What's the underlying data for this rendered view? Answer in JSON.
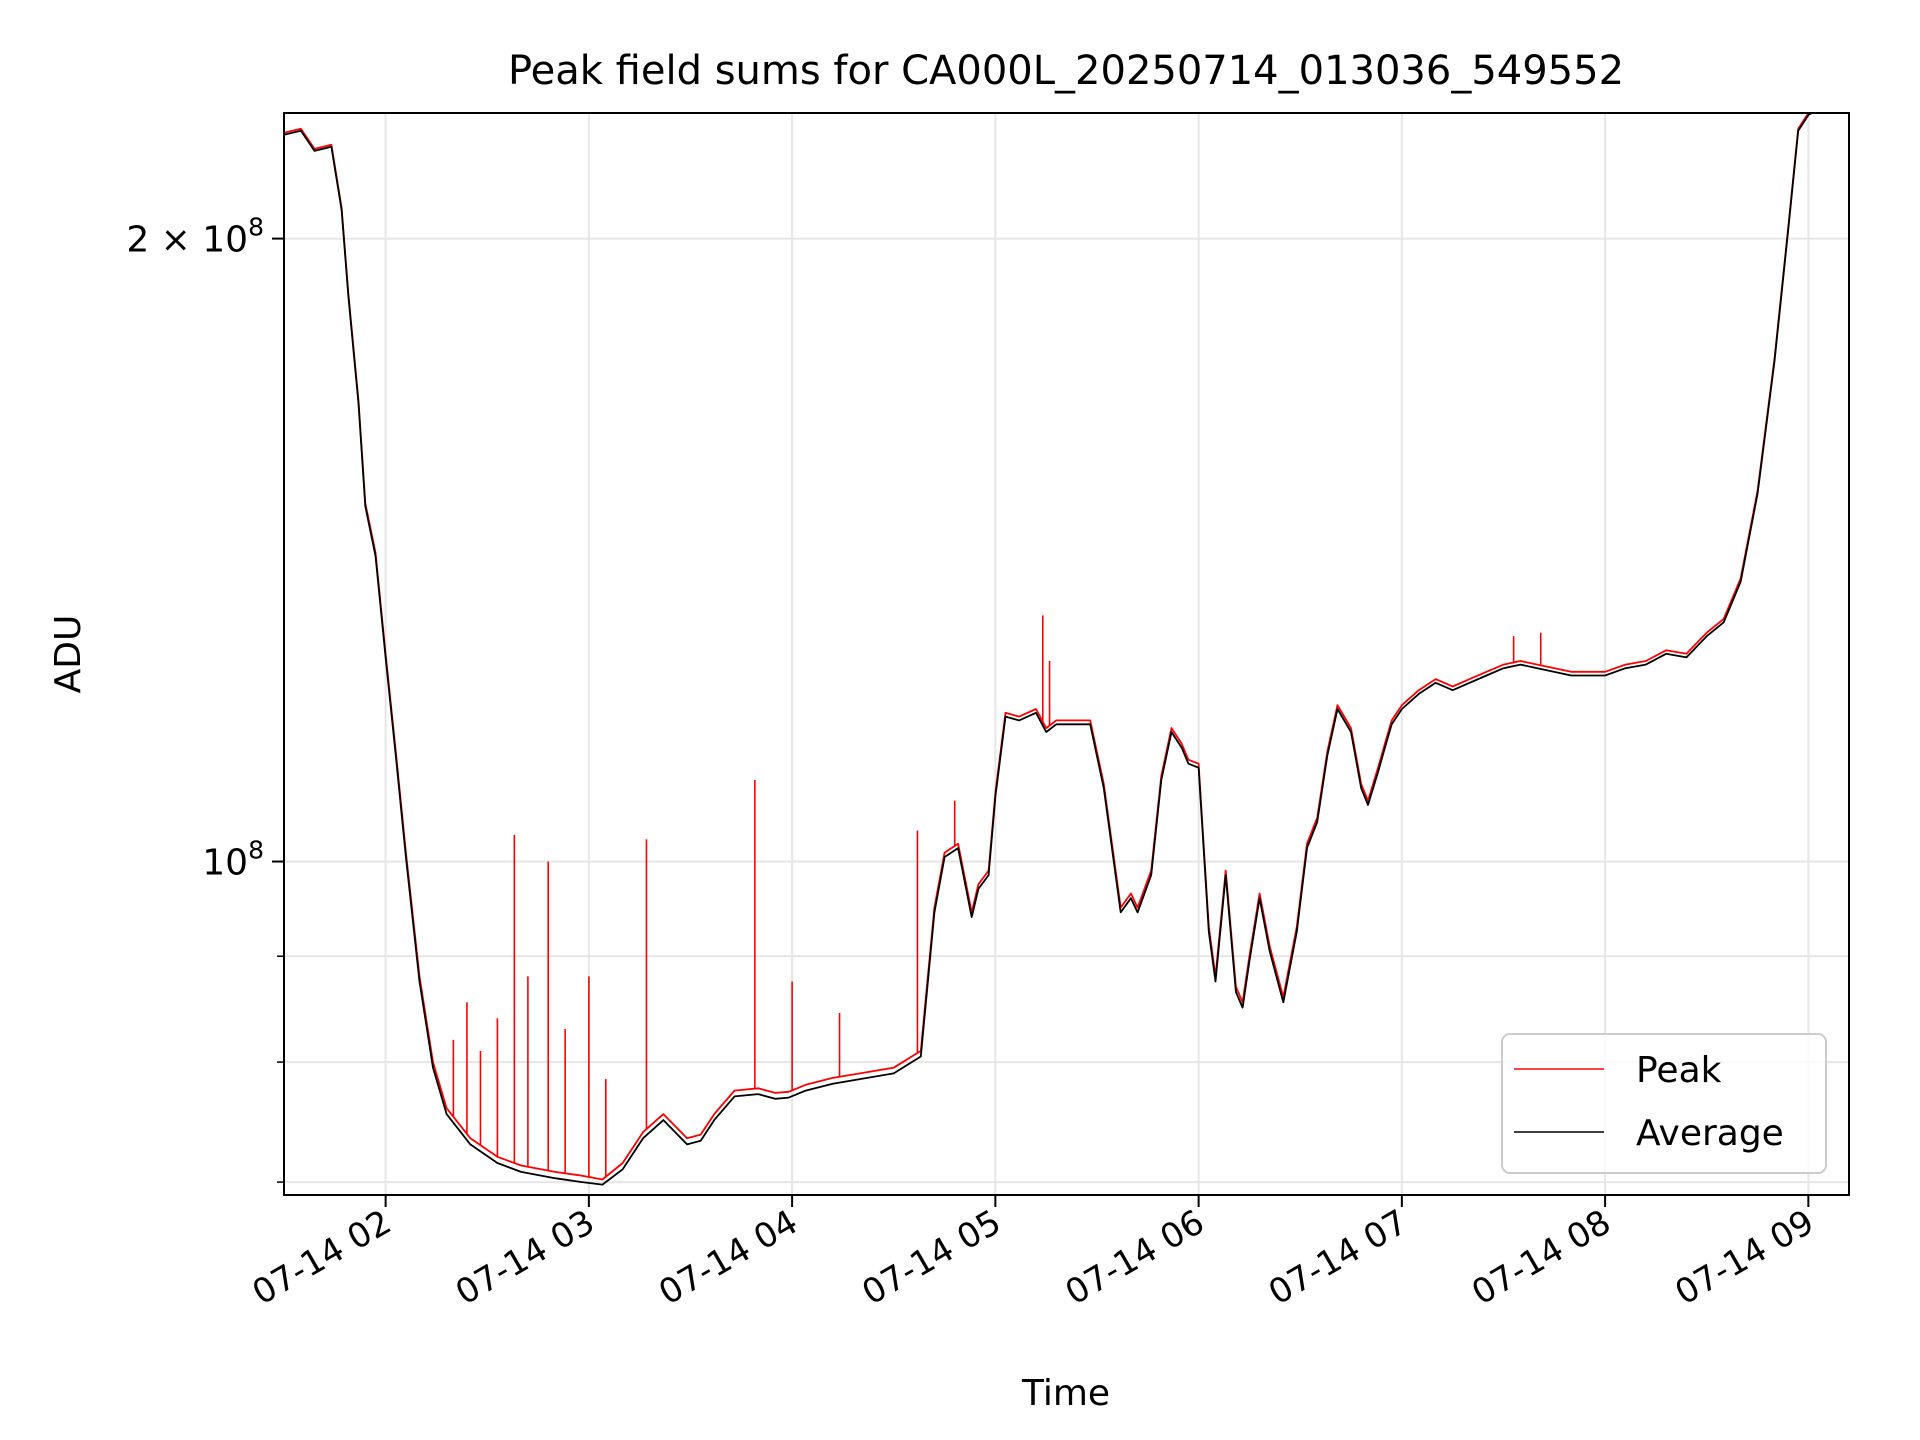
{
  "chart_data": {
    "type": "line",
    "title": "Peak field sums for CA000L_20250714_013036_549552",
    "xlabel": "Time",
    "ylabel": "ADU",
    "yscale": "log",
    "grid": true,
    "legend_position": "lower-right",
    "x_tick_labels": [
      "07-14 02",
      "07-14 03",
      "07-14 04",
      "07-14 05",
      "07-14 06",
      "07-14 07",
      "07-14 08",
      "07-14 09"
    ],
    "y_tick_labels": [
      {
        "value": 200000000,
        "mantissa": "2",
        "times": "×",
        "base": "10",
        "exp": "8"
      },
      {
        "value": 100000000,
        "mantissa": "",
        "times": "",
        "base": "10",
        "exp": "8"
      }
    ],
    "x_range": [
      "2025-07-14T01:30",
      "2025-07-14T09:12"
    ],
    "y_range": [
      69000000,
      230000000
    ],
    "series": [
      {
        "name": "Peak",
        "color": "#ff0000",
        "x": [
          "2025-07-14T01:30",
          "2025-07-14T01:35",
          "2025-07-14T01:39",
          "2025-07-14T01:44",
          "2025-07-14T01:47",
          "2025-07-14T01:49",
          "2025-07-14T01:52",
          "2025-07-14T01:54",
          "2025-07-14T01:57",
          "2025-07-14T02:00",
          "2025-07-14T02:03",
          "2025-07-14T02:06",
          "2025-07-14T02:10",
          "2025-07-14T02:14",
          "2025-07-14T02:18",
          "2025-07-14T02:25",
          "2025-07-14T02:33",
          "2025-07-14T02:40",
          "2025-07-14T02:50",
          "2025-07-14T02:58",
          "2025-07-14T03:04",
          "2025-07-14T03:10",
          "2025-07-14T03:16",
          "2025-07-14T03:22",
          "2025-07-14T03:29",
          "2025-07-14T03:33",
          "2025-07-14T03:37",
          "2025-07-14T03:43",
          "2025-07-14T03:50",
          "2025-07-14T03:55",
          "2025-07-14T03:59",
          "2025-07-14T04:04",
          "2025-07-14T04:12",
          "2025-07-14T04:20",
          "2025-07-14T04:30",
          "2025-07-14T04:38",
          "2025-07-14T04:42",
          "2025-07-14T04:45",
          "2025-07-14T04:49",
          "2025-07-14T04:53",
          "2025-07-14T04:55",
          "2025-07-14T04:58",
          "2025-07-14T05:00",
          "2025-07-14T05:03",
          "2025-07-14T05:07",
          "2025-07-14T05:12",
          "2025-07-14T05:15",
          "2025-07-14T05:18",
          "2025-07-14T05:22",
          "2025-07-14T05:28",
          "2025-07-14T05:32",
          "2025-07-14T05:37",
          "2025-07-14T05:40",
          "2025-07-14T05:42",
          "2025-07-14T05:46",
          "2025-07-14T05:49",
          "2025-07-14T05:52",
          "2025-07-14T05:55",
          "2025-07-14T05:57",
          "2025-07-14T06:00",
          "2025-07-14T06:03",
          "2025-07-14T06:05",
          "2025-07-14T06:08",
          "2025-07-14T06:11",
          "2025-07-14T06:13",
          "2025-07-14T06:15",
          "2025-07-14T06:18",
          "2025-07-14T06:21",
          "2025-07-14T06:25",
          "2025-07-14T06:29",
          "2025-07-14T06:32",
          "2025-07-14T06:35",
          "2025-07-14T06:38",
          "2025-07-14T06:41",
          "2025-07-14T06:45",
          "2025-07-14T06:48",
          "2025-07-14T06:50",
          "2025-07-14T06:53",
          "2025-07-14T06:55",
          "2025-07-14T06:57",
          "2025-07-14T07:00",
          "2025-07-14T07:05",
          "2025-07-14T07:10",
          "2025-07-14T07:15",
          "2025-07-14T07:20",
          "2025-07-14T07:25",
          "2025-07-14T07:30",
          "2025-07-14T07:35",
          "2025-07-14T07:40",
          "2025-07-14T07:50",
          "2025-07-14T08:00",
          "2025-07-14T08:06",
          "2025-07-14T08:12",
          "2025-07-14T08:18",
          "2025-07-14T08:24",
          "2025-07-14T08:30",
          "2025-07-14T08:35",
          "2025-07-14T08:40",
          "2025-07-14T08:45",
          "2025-07-14T08:50",
          "2025-07-14T08:54",
          "2025-07-14T08:57",
          "2025-07-14T09:00",
          "2025-07-14T09:02"
        ],
        "values": [
          225000000,
          226000000,
          221000000,
          222000000,
          207000000,
          188000000,
          167000000,
          149000000,
          141000000,
          126000000,
          113000000,
          101000000,
          88000000,
          80000000,
          76000000,
          73500000,
          72000000,
          71300000,
          70800000,
          70500000,
          70200000,
          71500000,
          74000000,
          75500000,
          73500000,
          73800000,
          75500000,
          77500000,
          77700000,
          77300000,
          77400000,
          78000000,
          78600000,
          79000000,
          79500000,
          81000000,
          95000000,
          101000000,
          102000000,
          94500000,
          97500000,
          99000000,
          108000000,
          118000000,
          117500000,
          118500000,
          116000000,
          117000000,
          117000000,
          117000000,
          109000000,
          95000000,
          96500000,
          95000000,
          99000000,
          110000000,
          116000000,
          114000000,
          112000000,
          111500000,
          93000000,
          88000000,
          99000000,
          87000000,
          85500000,
          90000000,
          96500000,
          91000000,
          86000000,
          93000000,
          102000000,
          105000000,
          113000000,
          119000000,
          116000000,
          109000000,
          107000000,
          111000000,
          114000000,
          117000000,
          119000000,
          121000000,
          122500000,
          121500000,
          122500000,
          123500000,
          124500000,
          125000000,
          124500000,
          123500000,
          123500000,
          124500000,
          125000000,
          126500000,
          126000000,
          129000000,
          131000000,
          137000000,
          151000000,
          175000000,
          202000000,
          226000000,
          230000000,
          231000000
        ],
        "spikes": [
          {
            "x": "2025-07-14T02:20",
            "value": 82000000
          },
          {
            "x": "2025-07-14T02:24",
            "value": 85500000
          },
          {
            "x": "2025-07-14T02:28",
            "value": 81000000
          },
          {
            "x": "2025-07-14T02:33",
            "value": 84000000
          },
          {
            "x": "2025-07-14T02:38",
            "value": 103000000
          },
          {
            "x": "2025-07-14T02:42",
            "value": 88000000
          },
          {
            "x": "2025-07-14T02:48",
            "value": 100000000
          },
          {
            "x": "2025-07-14T02:53",
            "value": 83000000
          },
          {
            "x": "2025-07-14T03:00",
            "value": 88000000
          },
          {
            "x": "2025-07-14T03:05",
            "value": 78500000
          },
          {
            "x": "2025-07-14T03:17",
            "value": 102500000
          },
          {
            "x": "2025-07-14T03:49",
            "value": 109500000
          },
          {
            "x": "2025-07-14T04:00",
            "value": 87500000
          },
          {
            "x": "2025-07-14T04:14",
            "value": 84500000
          },
          {
            "x": "2025-07-14T04:37",
            "value": 103500000
          },
          {
            "x": "2025-07-14T04:48",
            "value": 107000000
          },
          {
            "x": "2025-07-14T05:14",
            "value": 131500000
          },
          {
            "x": "2025-07-14T05:16",
            "value": 125000000
          },
          {
            "x": "2025-07-14T07:33",
            "value": 128500000
          },
          {
            "x": "2025-07-14T07:41",
            "value": 129000000
          }
        ]
      },
      {
        "name": "Average",
        "color": "#000000",
        "x": [
          "2025-07-14T01:30",
          "2025-07-14T01:35",
          "2025-07-14T01:39",
          "2025-07-14T01:44",
          "2025-07-14T01:47",
          "2025-07-14T01:49",
          "2025-07-14T01:52",
          "2025-07-14T01:54",
          "2025-07-14T01:57",
          "2025-07-14T02:00",
          "2025-07-14T02:03",
          "2025-07-14T02:06",
          "2025-07-14T02:10",
          "2025-07-14T02:14",
          "2025-07-14T02:18",
          "2025-07-14T02:25",
          "2025-07-14T02:33",
          "2025-07-14T02:40",
          "2025-07-14T02:50",
          "2025-07-14T02:58",
          "2025-07-14T03:04",
          "2025-07-14T03:10",
          "2025-07-14T03:16",
          "2025-07-14T03:22",
          "2025-07-14T03:29",
          "2025-07-14T03:33",
          "2025-07-14T03:37",
          "2025-07-14T03:43",
          "2025-07-14T03:50",
          "2025-07-14T03:55",
          "2025-07-14T03:59",
          "2025-07-14T04:04",
          "2025-07-14T04:12",
          "2025-07-14T04:20",
          "2025-07-14T04:30",
          "2025-07-14T04:38",
          "2025-07-14T04:42",
          "2025-07-14T04:45",
          "2025-07-14T04:49",
          "2025-07-14T04:53",
          "2025-07-14T04:55",
          "2025-07-14T04:58",
          "2025-07-14T05:00",
          "2025-07-14T05:03",
          "2025-07-14T05:07",
          "2025-07-14T05:12",
          "2025-07-14T05:15",
          "2025-07-14T05:18",
          "2025-07-14T05:22",
          "2025-07-14T05:28",
          "2025-07-14T05:32",
          "2025-07-14T05:37",
          "2025-07-14T05:40",
          "2025-07-14T05:42",
          "2025-07-14T05:46",
          "2025-07-14T05:49",
          "2025-07-14T05:52",
          "2025-07-14T05:55",
          "2025-07-14T05:57",
          "2025-07-14T06:00",
          "2025-07-14T06:03",
          "2025-07-14T06:05",
          "2025-07-14T06:08",
          "2025-07-14T06:11",
          "2025-07-14T06:13",
          "2025-07-14T06:15",
          "2025-07-14T06:18",
          "2025-07-14T06:21",
          "2025-07-14T06:25",
          "2025-07-14T06:29",
          "2025-07-14T06:32",
          "2025-07-14T06:35",
          "2025-07-14T06:38",
          "2025-07-14T06:41",
          "2025-07-14T06:45",
          "2025-07-14T06:48",
          "2025-07-14T06:50",
          "2025-07-14T06:53",
          "2025-07-14T06:55",
          "2025-07-14T06:57",
          "2025-07-14T07:00",
          "2025-07-14T07:05",
          "2025-07-14T07:10",
          "2025-07-14T07:15",
          "2025-07-14T07:20",
          "2025-07-14T07:25",
          "2025-07-14T07:30",
          "2025-07-14T07:35",
          "2025-07-14T07:40",
          "2025-07-14T07:50",
          "2025-07-14T08:00",
          "2025-07-14T08:06",
          "2025-07-14T08:12",
          "2025-07-14T08:18",
          "2025-07-14T08:24",
          "2025-07-14T08:30",
          "2025-07-14T08:35",
          "2025-07-14T08:40",
          "2025-07-14T08:45",
          "2025-07-14T08:50",
          "2025-07-14T08:54",
          "2025-07-14T08:57",
          "2025-07-14T09:00",
          "2025-07-14T09:02"
        ],
        "values": [
          224500000,
          225500000,
          220500000,
          221500000,
          206500000,
          187500000,
          166500000,
          148500000,
          140500000,
          125500000,
          112500000,
          100500000,
          87500000,
          79500000,
          75500000,
          73000000,
          71500000,
          70800000,
          70300000,
          70000000,
          69800000,
          71000000,
          73500000,
          75000000,
          73000000,
          73300000,
          75000000,
          77000000,
          77200000,
          76800000,
          76900000,
          77500000,
          78100000,
          78500000,
          79000000,
          80500000,
          94500000,
          100500000,
          101500000,
          94000000,
          97000000,
          98500000,
          107500000,
          117500000,
          117000000,
          118000000,
          115500000,
          116500000,
          116500000,
          116500000,
          108500000,
          94500000,
          96000000,
          94500000,
          98500000,
          109500000,
          115500000,
          113500000,
          111500000,
          111000000,
          92500000,
          87500000,
          98500000,
          86500000,
          85000000,
          89500000,
          96000000,
          90500000,
          85500000,
          92500000,
          101500000,
          104500000,
          112500000,
          118500000,
          115500000,
          108500000,
          106500000,
          110500000,
          113500000,
          116500000,
          118500000,
          120500000,
          122000000,
          121000000,
          122000000,
          123000000,
          124000000,
          124500000,
          124000000,
          123000000,
          123000000,
          124000000,
          124500000,
          126000000,
          125500000,
          128500000,
          130500000,
          136500000,
          150500000,
          174500000,
          201500000,
          225500000,
          229500000,
          230500000
        ]
      }
    ]
  }
}
